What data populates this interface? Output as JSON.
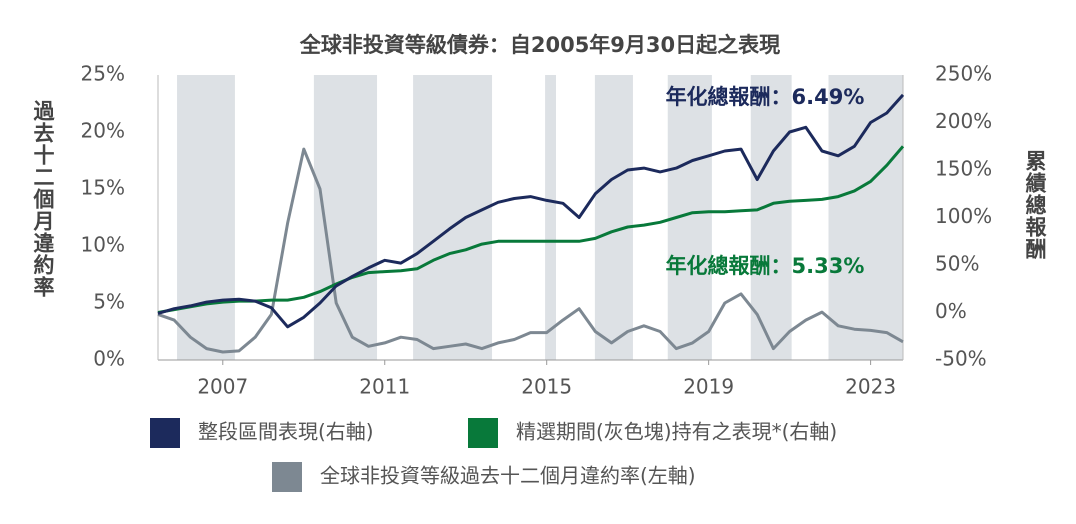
{
  "chart_data": {
    "type": "line",
    "title": "全球非投資等級債券：自2005年9月30日起之表現",
    "y_label": "過去十二個月違約率",
    "y2_label": "累績總報酬",
    "x": [
      2005.4,
      2005.8,
      2006.2,
      2006.6,
      2007.0,
      2007.4,
      2007.8,
      2008.2,
      2008.6,
      2009.0,
      2009.4,
      2009.8,
      2010.2,
      2010.6,
      2011.0,
      2011.4,
      2011.8,
      2012.2,
      2012.6,
      2013.0,
      2013.4,
      2013.8,
      2014.2,
      2014.6,
      2015.0,
      2015.4,
      2015.8,
      2016.2,
      2016.6,
      2017.0,
      2017.4,
      2017.8,
      2018.2,
      2018.6,
      2019.0,
      2019.4,
      2019.8,
      2020.2,
      2020.6,
      2021.0,
      2021.4,
      2021.8,
      2022.2,
      2022.6,
      2023.0,
      2023.4,
      2023.8
    ],
    "xlim": [
      2005.4,
      2023.8
    ],
    "xticks": [
      2007,
      2011,
      2015,
      2019,
      2023
    ],
    "ylim": [
      0,
      25
    ],
    "yticks": [
      {
        "value": 0,
        "label": "0%"
      },
      {
        "value": 5,
        "label": "5%"
      },
      {
        "value": 10,
        "label": "10%"
      },
      {
        "value": 15,
        "label": "15%"
      },
      {
        "value": 20,
        "label": "20%"
      },
      {
        "value": 25,
        "label": "25%"
      }
    ],
    "y2lim": [
      -50,
      250
    ],
    "y2ticks": [
      {
        "value": -50,
        "label": "-50%"
      },
      {
        "value": 0,
        "label": "0%"
      },
      {
        "value": 50,
        "label": "50%"
      },
      {
        "value": 100,
        "label": "100%"
      },
      {
        "value": 150,
        "label": "150%"
      },
      {
        "value": 200,
        "label": "200%"
      },
      {
        "value": 250,
        "label": "250%"
      }
    ],
    "shaded_periods": [
      [
        2005.87,
        2007.3
      ],
      [
        2009.25,
        2010.81
      ],
      [
        2011.7,
        2013.65
      ],
      [
        2014.96,
        2015.23
      ],
      [
        2016.19,
        2017.13
      ],
      [
        2017.99,
        2019.08
      ],
      [
        2020.04,
        2021.05
      ],
      [
        2021.96,
        2023.8
      ]
    ],
    "shade_color": "#dde1e5",
    "legend": "bottom",
    "series": [
      {
        "name": "整段區間表現(右軸)",
        "color": "#1c2a5c",
        "axis": "y2",
        "values": [
          -1,
          4,
          7,
          11,
          13,
          14,
          12,
          5,
          -15,
          -5,
          10,
          28,
          38,
          47,
          55,
          52,
          62,
          75,
          88,
          100,
          108,
          116,
          120,
          122,
          118,
          115,
          100,
          125,
          140,
          150,
          152,
          148,
          152,
          160,
          165,
          170,
          172,
          140,
          170,
          190,
          195,
          170,
          165,
          175,
          200,
          210,
          229
        ]
      },
      {
        "name": "精選期間(灰色塊)持有之表現*(右軸)",
        "color": "#08793a",
        "axis": "y2",
        "values": [
          0,
          3,
          6,
          9,
          11,
          12,
          12,
          13,
          13,
          16,
          22,
          30,
          37,
          42,
          43,
          44,
          46,
          55,
          62,
          66,
          72,
          75,
          75,
          75,
          75,
          75,
          75,
          78,
          85,
          90,
          92,
          95,
          100,
          105,
          106,
          106,
          107,
          108,
          115,
          117,
          118,
          119,
          122,
          128,
          138,
          155,
          175
        ]
      },
      {
        "name": "全球非投資等級過去十二個月違約率(左軸)",
        "color": "#7d8892",
        "axis": "y",
        "values": [
          4,
          3.5,
          2,
          1,
          0.7,
          0.8,
          2,
          4,
          12,
          18.5,
          15,
          5,
          2,
          1.2,
          1.5,
          2,
          1.8,
          1,
          1.2,
          1.4,
          1,
          1.5,
          1.8,
          2.4,
          2.4,
          3.5,
          4.5,
          2.5,
          1.5,
          2.5,
          3,
          2.5,
          1,
          1.5,
          2.5,
          5,
          5.8,
          4,
          1,
          2.5,
          3.5,
          4.2,
          3,
          2.7,
          2.6,
          2.4,
          1.6
        ]
      }
    ],
    "annotations": [
      {
        "text": "年化總報酬：6.49%",
        "color": "#1c2a5c"
      },
      {
        "text": "年化總報酬：5.33%",
        "color": "#08793a"
      }
    ]
  }
}
